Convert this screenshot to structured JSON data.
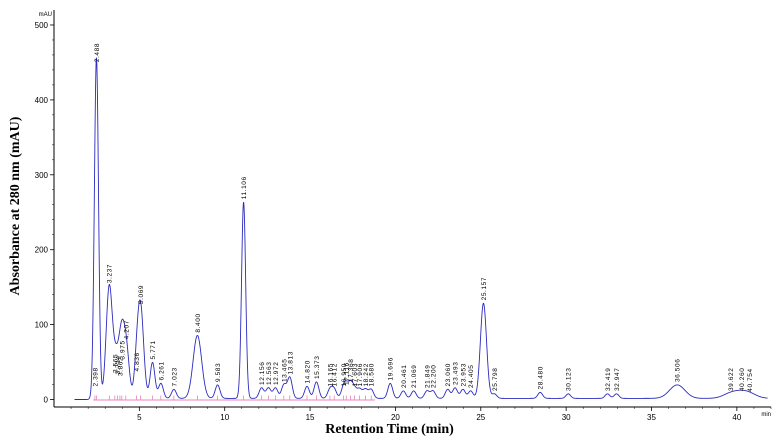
{
  "chart_data": {
    "type": "line",
    "title": "",
    "xlabel": "Retention Time (min)",
    "ylabel": "Absorbance at 280 nm (mAU)",
    "y_unit": "mAU",
    "x_unit": "min",
    "xlim": [
      0,
      42
    ],
    "ylim": [
      -10,
      520
    ],
    "x_ticks": [
      5,
      10,
      15,
      20,
      25,
      30,
      35,
      40
    ],
    "y_ticks": [
      0,
      100,
      200,
      300,
      400,
      500
    ],
    "grid": false,
    "series": [
      {
        "color": "#2b2bbf",
        "peaks": [
          {
            "rt": 2.398,
            "height": 12
          },
          {
            "rt": 2.488,
            "height": 445
          },
          {
            "rt": 3.237,
            "height": 150
          },
          {
            "rt": 3.565,
            "height": 30
          },
          {
            "rt": 3.714,
            "height": 28
          },
          {
            "rt": 3.862,
            "height": 26
          },
          {
            "rt": 3.975,
            "height": 48
          },
          {
            "rt": 4.207,
            "height": 75
          },
          {
            "rt": 4.836,
            "height": 32
          },
          {
            "rt": 5.069,
            "height": 122
          },
          {
            "rt": 5.771,
            "height": 48
          },
          {
            "rt": 6.261,
            "height": 20
          },
          {
            "rt": 7.023,
            "height": 12
          },
          {
            "rt": 8.4,
            "height": 84
          },
          {
            "rt": 9.583,
            "height": 18
          },
          {
            "rt": 11.106,
            "height": 262
          },
          {
            "rt": 12.156,
            "height": 14
          },
          {
            "rt": 12.563,
            "height": 14
          },
          {
            "rt": 12.972,
            "height": 14
          },
          {
            "rt": 13.465,
            "height": 18
          },
          {
            "rt": 13.813,
            "height": 28
          },
          {
            "rt": 14.82,
            "height": 16
          },
          {
            "rt": 15.373,
            "height": 22
          },
          {
            "rt": 16.165,
            "height": 12
          },
          {
            "rt": 16.412,
            "height": 12
          },
          {
            "rt": 16.95,
            "height": 12
          },
          {
            "rt": 17.116,
            "height": 14
          },
          {
            "rt": 17.368,
            "height": 18
          },
          {
            "rt": 17.603,
            "height": 12
          },
          {
            "rt": 17.906,
            "height": 12
          },
          {
            "rt": 18.242,
            "height": 12
          },
          {
            "rt": 18.58,
            "height": 12
          },
          {
            "rt": 19.696,
            "height": 20
          },
          {
            "rt": 20.461,
            "height": 10
          },
          {
            "rt": 21.069,
            "height": 10
          },
          {
            "rt": 21.849,
            "height": 10
          },
          {
            "rt": 22.2,
            "height": 10
          },
          {
            "rt": 23.06,
            "height": 12
          },
          {
            "rt": 23.493,
            "height": 14
          },
          {
            "rt": 23.953,
            "height": 12
          },
          {
            "rt": 24.405,
            "height": 10
          },
          {
            "rt": 25.157,
            "height": 127
          },
          {
            "rt": 25.798,
            "height": 6
          },
          {
            "rt": 28.48,
            "height": 8
          },
          {
            "rt": 30.123,
            "height": 6
          },
          {
            "rt": 32.419,
            "height": 6
          },
          {
            "rt": 32.947,
            "height": 6
          },
          {
            "rt": 36.506,
            "height": 18
          },
          {
            "rt": 39.622,
            "height": 6
          },
          {
            "rt": 40.26,
            "height": 6
          },
          {
            "rt": 40.754,
            "height": 5
          }
        ]
      }
    ],
    "peak_labels": [
      "2.398",
      "2.488",
      "3.237",
      "3.565",
      "3.714",
      "3.862",
      "3.975",
      "4.207",
      "4.836",
      "5.069",
      "5.771",
      "6.261",
      "7.023",
      "8.400",
      "9.583",
      "11.106",
      "12.156",
      "12.563",
      "12.972",
      "13.465",
      "13.813",
      "14.820",
      "15.373",
      "16.165",
      "16.412",
      "16.950",
      "17.116",
      "17.368",
      "17.603",
      "17.906",
      "18.242",
      "18.580",
      "19.696",
      "20.461",
      "21.069",
      "21.849",
      "22.200",
      "23.060",
      "23.493",
      "23.953",
      "24.405",
      "25.157",
      "25.798",
      "28.480",
      "30.123",
      "32.419",
      "32.947",
      "36.506",
      "39.622",
      "40.260",
      "40.754"
    ],
    "baseline_color": "#e05aa6"
  }
}
